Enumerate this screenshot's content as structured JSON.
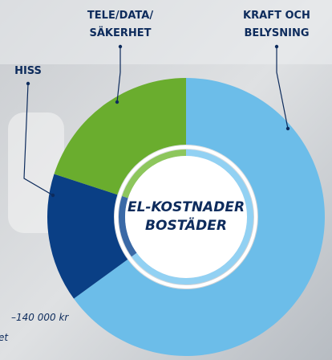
{
  "chart_data": {
    "type": "donut",
    "categories": [
      [
        "KRAFT OCH",
        "BELYSNING"
      ],
      [
        "HISS"
      ],
      [
        "TELE/DATA/",
        "SÄKERHET"
      ]
    ],
    "values": [
      65,
      15,
      20
    ],
    "colors": [
      "#6cbde9",
      "#0a3f85",
      "#6aad2e"
    ],
    "inner_colors": [
      "#92d1f3",
      "#3a69a6",
      "#8dc65c"
    ],
    "center_label": [
      "EL-KOSTNADER",
      "BOSTÄDER"
    ],
    "annotations": [
      "–140 000 kr",
      "et"
    ]
  }
}
